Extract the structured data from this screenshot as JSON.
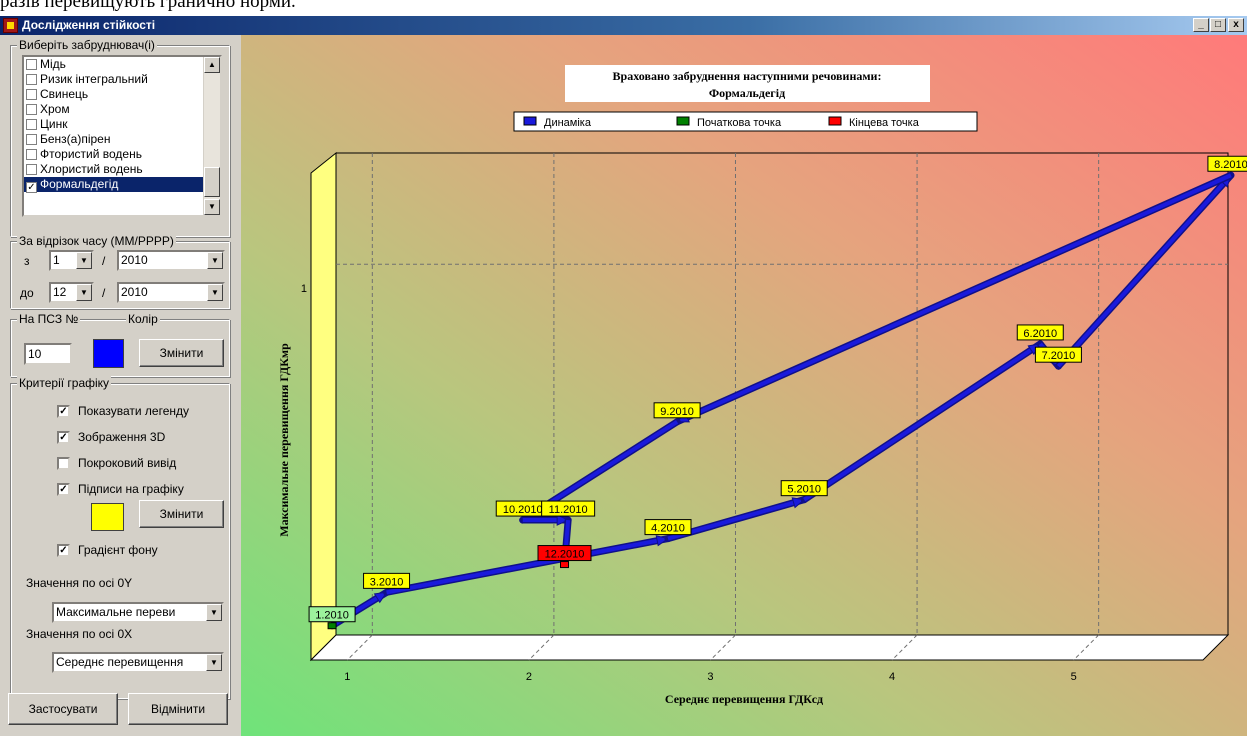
{
  "top_text": "разів перевищують гранично норми.",
  "window": {
    "title": "Дослідження стійкості",
    "min_glyph": "_",
    "max_glyph": "□",
    "close_glyph": "x"
  },
  "colors": {
    "title_start": "#0a246a",
    "psz_color": "#0000ff",
    "label_color": "#ffff00",
    "start_color": "#008000",
    "end_color": "#ff0000",
    "line_color": "#1a1adc"
  },
  "pollutant_group": {
    "legend": "Виберіть забруднювач(і)",
    "items": [
      {
        "label": "Мідь",
        "checked": false,
        "selected": false
      },
      {
        "label": "Ризик інтегральний",
        "checked": false,
        "selected": false
      },
      {
        "label": "Свинець",
        "checked": false,
        "selected": false
      },
      {
        "label": "Хром",
        "checked": false,
        "selected": false
      },
      {
        "label": "Цинк",
        "checked": false,
        "selected": false
      },
      {
        "label": "Бенз(а)пірен",
        "checked": false,
        "selected": false
      },
      {
        "label": "Фтористий водень",
        "checked": false,
        "selected": false
      },
      {
        "label": "Хлористий водень",
        "checked": false,
        "selected": false
      },
      {
        "label": "Формальдегід",
        "checked": true,
        "selected": true
      }
    ]
  },
  "period_group": {
    "legend": "За відрізок часу (ММ/РРРР)",
    "from_label": "з",
    "to_label": "до",
    "slash": "/",
    "from_month": "1",
    "from_year": "2010",
    "to_month": "12",
    "to_year": "2010"
  },
  "psz_group": {
    "legend": "На ПСЗ №",
    "color_label": "Колір",
    "number": "10",
    "change_label": "Змінити"
  },
  "criteria_group": {
    "legend": "Критерії графіку",
    "options": [
      {
        "label": "Показувати легенду",
        "checked": true
      },
      {
        "label": "Зображення 3D",
        "checked": true
      },
      {
        "label": "Покроковий вивід",
        "checked": false
      },
      {
        "label": "Підписи на графіку",
        "checked": true
      }
    ],
    "change_label": "Змінити",
    "gradient_label": "Градієнт фону",
    "gradient_checked": true,
    "y_axis_label": "Значення по осі 0Y",
    "y_axis_value": "Максимальне переви",
    "x_axis_label": "Значення по осі 0X",
    "x_axis_value": "Середнє перевищення"
  },
  "buttons": {
    "apply": "Застосувати",
    "cancel": "Відмінити"
  },
  "chart_data": {
    "type": "line",
    "title_line1": "Враховано забруднення наступними речовинами:",
    "title_line2": "Формальдегід",
    "legend": [
      "Динаміка",
      "Початкова точка",
      "Кінцева точка"
    ],
    "xlabel": "Середнє перевищення ГДКсд",
    "ylabel": "Максимальне перевищення ГДКмр",
    "x_ticks": [
      "1",
      "2",
      "3",
      "4",
      "5"
    ],
    "y_ticks": [
      "1"
    ],
    "xlim": [
      0.8,
      5.85
    ],
    "ylim": [
      0.8,
      1.06
    ],
    "points": [
      {
        "label": "1.2010",
        "x": 0.85,
        "y": 0.805
      },
      {
        "label": "3.2010",
        "x": 1.15,
        "y": 0.823
      },
      {
        "label": "4.2010",
        "x": 2.7,
        "y": 0.852
      },
      {
        "label": "5.2010",
        "x": 3.45,
        "y": 0.873
      },
      {
        "label": "6.2010",
        "x": 4.75,
        "y": 0.957
      },
      {
        "label": "7.2010",
        "x": 4.85,
        "y": 0.945
      },
      {
        "label": "8.2010",
        "x": 5.8,
        "y": 1.048
      },
      {
        "label": "9.2010",
        "x": 2.75,
        "y": 0.915
      },
      {
        "label": "10.2010",
        "x": 1.9,
        "y": 0.862
      },
      {
        "label": "11.2010",
        "x": 2.15,
        "y": 0.862
      },
      {
        "label": "12.2010",
        "x": 2.13,
        "y": 0.838
      }
    ]
  }
}
